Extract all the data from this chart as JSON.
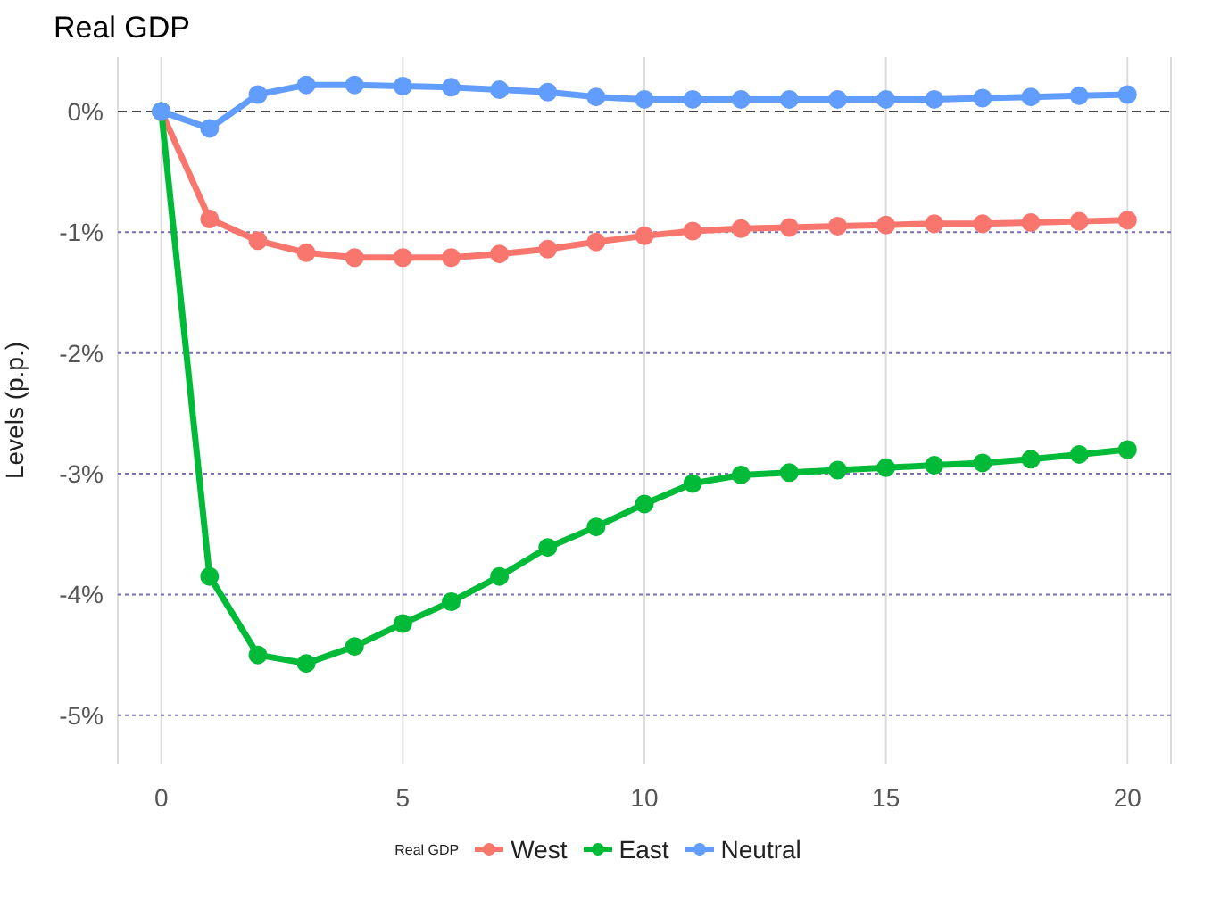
{
  "chart_data": {
    "type": "line",
    "title": "Real GDP",
    "ylabel": "Levels (p.p.)",
    "legend_title": "Real GDP",
    "x": [
      0,
      1,
      2,
      3,
      4,
      5,
      6,
      7,
      8,
      9,
      10,
      11,
      12,
      13,
      14,
      15,
      16,
      17,
      18,
      19,
      20
    ],
    "series": [
      {
        "name": "West",
        "color": "#f8766d",
        "values": [
          0,
          -0.89,
          -1.07,
          -1.17,
          -1.21,
          -1.21,
          -1.21,
          -1.18,
          -1.14,
          -1.08,
          -1.03,
          -0.99,
          -0.97,
          -0.96,
          -0.95,
          -0.94,
          -0.93,
          -0.93,
          -0.92,
          -0.91,
          -0.9
        ]
      },
      {
        "name": "East",
        "color": "#00ba38",
        "values": [
          0,
          -3.85,
          -4.5,
          -4.57,
          -4.43,
          -4.24,
          -4.06,
          -3.85,
          -3.61,
          -3.44,
          -3.25,
          -3.08,
          -3.01,
          -2.99,
          -2.97,
          -2.95,
          -2.93,
          -2.91,
          -2.88,
          -2.84,
          -2.8
        ]
      },
      {
        "name": "Neutral",
        "color": "#619cff",
        "values": [
          0,
          -0.14,
          0.14,
          0.22,
          0.22,
          0.21,
          0.2,
          0.18,
          0.16,
          0.12,
          0.1,
          0.1,
          0.1,
          0.1,
          0.1,
          0.1,
          0.1,
          0.11,
          0.12,
          0.13,
          0.14
        ]
      }
    ],
    "xlim": [
      -0.9,
      20.9
    ],
    "xticks": [
      0,
      5,
      10,
      15,
      20
    ],
    "ylim": [
      -5.4,
      0.45
    ],
    "yticks": [
      {
        "value": 0,
        "label": "0%"
      },
      {
        "value": -1,
        "label": "-1%"
      },
      {
        "value": -2,
        "label": "-2%"
      },
      {
        "value": -3,
        "label": "-3%"
      },
      {
        "value": -4,
        "label": "-4%"
      },
      {
        "value": -5,
        "label": "-5%"
      }
    ],
    "ref_lines": [
      {
        "axis": "y",
        "value": 0,
        "color": "#444444",
        "line_style": "dashed"
      },
      {
        "axis": "y",
        "value": -1,
        "color": "#7b6fb0",
        "line_style": "dotted"
      },
      {
        "axis": "y",
        "value": -2,
        "color": "#7b6fb0",
        "line_style": "dotted"
      },
      {
        "axis": "y",
        "value": -3,
        "color": "#7b6fb0",
        "line_style": "dotted"
      },
      {
        "axis": "y",
        "value": -4,
        "color": "#7b6fb0",
        "line_style": "dotted"
      },
      {
        "axis": "y",
        "value": -5,
        "color": "#7b6fb0",
        "line_style": "dotted"
      }
    ],
    "grid": "x",
    "legend": "bottom",
    "marker": "circle",
    "line_style": "solid"
  }
}
